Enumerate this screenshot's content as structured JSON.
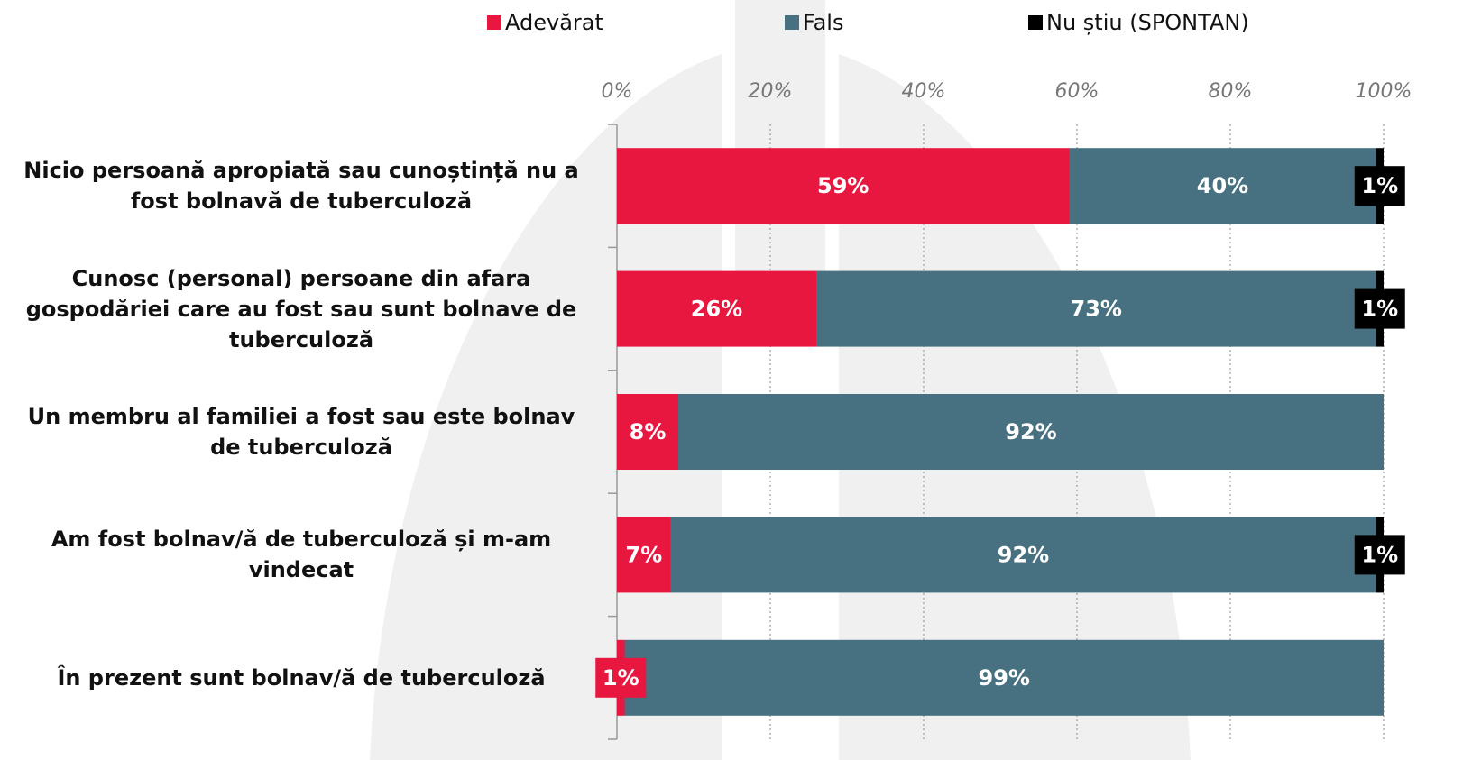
{
  "chart_data": {
    "type": "stacked-barh",
    "categories": [
      "Nicio persoană apropiată sau cunoștință nu a fost bolnavă de tuberculoză",
      "Cunosc (personal) persoane din afara gospodăriei care au fost sau sunt bolnave de tuberculoză",
      "Un membru al familiei a fost sau este bolnav de tuberculoză",
      "Am fost bolnav/ă de tuberculoză și m-am vindecat",
      "În prezent sunt bolnav/ă de tuberculoză"
    ],
    "series": [
      {
        "name": "Adevărat",
        "color": "#e8173f",
        "values": [
          59,
          26,
          8,
          7,
          1
        ],
        "value_labels": [
          "59%",
          "26%",
          "8%",
          "7%",
          "1%"
        ]
      },
      {
        "name": "Fals",
        "color": "#477181",
        "values": [
          40,
          73,
          92,
          92,
          99
        ],
        "value_labels": [
          "40%",
          "73%",
          "92%",
          "92%",
          "99%"
        ]
      },
      {
        "name": "Nu știu (SPONTAN)",
        "color": "#000000",
        "values": [
          1,
          1,
          null,
          1,
          null
        ],
        "value_labels": [
          "1%",
          "1%",
          null,
          "1%",
          null
        ]
      }
    ],
    "xlim": [
      0,
      100
    ],
    "xticks": [
      {
        "value": 0,
        "label": "0%"
      },
      {
        "value": 20,
        "label": "20%"
      },
      {
        "value": 40,
        "label": "40%"
      },
      {
        "value": 60,
        "label": "60%"
      },
      {
        "value": 80,
        "label": "80%"
      },
      {
        "value": 100,
        "label": "100%"
      }
    ],
    "grid": true,
    "legend": "top"
  }
}
